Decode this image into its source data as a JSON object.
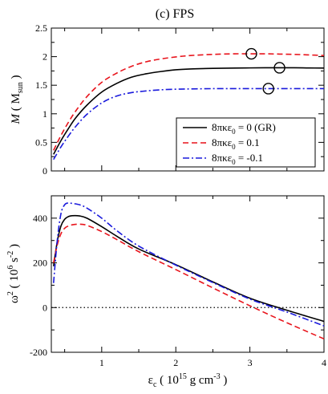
{
  "figure": {
    "title": "(c) FPS",
    "xlabel_main": "ε",
    "xlabel_sub": "c",
    "xlabel_rest": " ( 10",
    "xlabel_sup1": "15",
    "xlabel_unit": " g cm",
    "xlabel_sup2": "-3",
    "xlabel_close": " )"
  },
  "chart_data": [
    {
      "type": "line",
      "panel": "top",
      "ylabel": {
        "main": "M",
        "open": " ( M",
        "sub": "sun",
        "close": " )"
      },
      "xlim": [
        0.32,
        4.0
      ],
      "ylim": [
        0,
        2.5
      ],
      "xticks": [
        1,
        2,
        3,
        4
      ],
      "yticks": [
        0,
        0.5,
        1,
        1.5,
        2,
        2.5
      ],
      "ytick_labels": [
        "0",
        "0.5",
        "1",
        "1.5",
        "2",
        "2.5"
      ],
      "xtick_labels": [
        "1",
        "2",
        "3",
        "4"
      ],
      "legend_position": "lower-right",
      "series": [
        {
          "name_main": "8πκε",
          "name_sub": "0",
          "name_rest": " = 0 (GR)",
          "color": "#000000",
          "dash": "solid",
          "x": [
            0.35,
            0.45,
            0.55,
            0.65,
            0.8,
            1.0,
            1.2,
            1.4,
            1.6,
            1.8,
            2.0,
            2.2,
            2.5,
            2.8,
            3.0,
            3.2,
            3.4,
            3.6,
            3.8,
            4.0
          ],
          "y": [
            0.29,
            0.53,
            0.74,
            0.93,
            1.15,
            1.38,
            1.53,
            1.64,
            1.7,
            1.74,
            1.77,
            1.785,
            1.795,
            1.8,
            1.803,
            1.805,
            1.805,
            1.805,
            1.802,
            1.8
          ]
        },
        {
          "name_main": "8πκε",
          "name_sub": "0",
          "name_rest": " = 0.1",
          "color": "#e8141c",
          "dash": "dashed",
          "x": [
            0.35,
            0.45,
            0.55,
            0.65,
            0.8,
            1.0,
            1.2,
            1.4,
            1.6,
            1.8,
            2.0,
            2.2,
            2.5,
            2.8,
            3.0,
            3.2,
            3.4,
            3.6,
            3.8,
            4.0
          ],
          "y": [
            0.36,
            0.62,
            0.85,
            1.05,
            1.3,
            1.55,
            1.71,
            1.83,
            1.91,
            1.96,
            1.995,
            2.02,
            2.04,
            2.05,
            2.05,
            2.05,
            2.045,
            2.04,
            2.03,
            2.02
          ]
        },
        {
          "name_main": "8πκε",
          "name_sub": "0",
          "name_rest": " = -0.1",
          "color": "#1a1adc",
          "dash": "dashdot",
          "x": [
            0.35,
            0.45,
            0.55,
            0.65,
            0.8,
            1.0,
            1.2,
            1.4,
            1.6,
            1.8,
            2.0,
            2.2,
            2.5,
            2.8,
            3.0,
            3.2,
            3.4,
            3.6,
            3.8,
            4.0
          ],
          "y": [
            0.2,
            0.42,
            0.61,
            0.78,
            0.99,
            1.19,
            1.31,
            1.37,
            1.4,
            1.42,
            1.43,
            1.435,
            1.44,
            1.44,
            1.44,
            1.44,
            1.44,
            1.44,
            1.44,
            1.44
          ]
        }
      ],
      "markers": [
        {
          "series": "8πκε0 = 0.1",
          "x": 3.02,
          "y": 2.05,
          "shape": "open-circle"
        },
        {
          "series": "8πκε0 = 0 (GR)",
          "x": 3.4,
          "y": 1.805,
          "shape": "open-circle"
        },
        {
          "series": "8πκε0 = -0.1",
          "x": 3.25,
          "y": 1.44,
          "shape": "open-circle"
        }
      ]
    },
    {
      "type": "line",
      "panel": "bottom",
      "ylabel": {
        "main": "ω",
        "sup": "2",
        "open": " ( 10",
        "sup2": "6",
        "unit": " s",
        "sup3": "-2",
        "close": " )"
      },
      "xlim": [
        0.32,
        4.0
      ],
      "ylim": [
        -200,
        500
      ],
      "xticks": [
        1,
        2,
        3,
        4
      ],
      "yticks": [
        -200,
        0,
        200,
        400
      ],
      "ytick_labels": [
        "-200",
        "0",
        "200",
        "400"
      ],
      "xtick_labels": [
        "1",
        "2",
        "3",
        "4"
      ],
      "reference_line": {
        "y": 0,
        "style": "dotted"
      },
      "series": [
        {
          "name": "8πκε0 = 0 (GR)",
          "color": "#000000",
          "dash": "solid",
          "x": [
            0.35,
            0.4,
            0.45,
            0.5,
            0.55,
            0.6,
            0.7,
            0.8,
            1.0,
            1.2,
            1.5,
            2.0,
            2.5,
            3.0,
            3.5,
            4.0
          ],
          "y": [
            185,
            295,
            365,
            395,
            407,
            411,
            410,
            400,
            362,
            320,
            262,
            192,
            115,
            42,
            -12,
            -62
          ]
        },
        {
          "name": "8πκε0 = 0.1",
          "color": "#e8141c",
          "dash": "dashed",
          "x": [
            0.35,
            0.4,
            0.45,
            0.5,
            0.55,
            0.6,
            0.7,
            0.8,
            1.0,
            1.2,
            1.5,
            2.0,
            2.5,
            3.0,
            3.5,
            4.0
          ],
          "y": [
            200,
            280,
            330,
            355,
            365,
            370,
            373,
            368,
            340,
            305,
            250,
            170,
            88,
            8,
            -68,
            -140
          ]
        },
        {
          "name": "8πκε0 = -0.1",
          "color": "#1a1adc",
          "dash": "dashdot",
          "x": [
            0.35,
            0.4,
            0.45,
            0.5,
            0.55,
            0.6,
            0.7,
            0.8,
            1.0,
            1.2,
            1.5,
            2.0,
            2.5,
            3.0,
            3.5,
            4.0
          ],
          "y": [
            110,
            300,
            420,
            460,
            468,
            466,
            460,
            445,
            400,
            345,
            275,
            190,
            112,
            38,
            -20,
            -82
          ]
        }
      ]
    }
  ]
}
